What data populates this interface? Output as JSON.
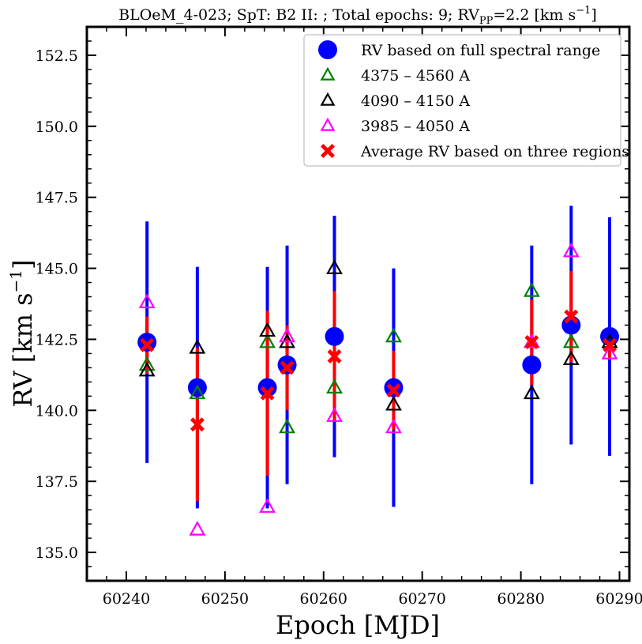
{
  "chart_data": {
    "type": "scatter",
    "title_parts": {
      "main": "BLOeM_4-023; SpT: B2 II: ; Total epochs: 9; RV",
      "sub": "PP",
      "rest": "=2.2 [km s",
      "sup": "−1",
      "close": "]"
    },
    "xlabel": "Epoch [MJD]",
    "ylabel_main": "RV [km s",
    "ylabel_sup": "−1",
    "ylabel_close": "]",
    "xlim": [
      60236,
      60291
    ],
    "ylim": [
      134.0,
      153.5
    ],
    "xticks": [
      "60240",
      "60250",
      "60260",
      "60270",
      "60280",
      "60290"
    ],
    "yticks": [
      "135.0",
      "137.5",
      "140.0",
      "142.5",
      "145.0",
      "147.5",
      "150.0",
      "152.5"
    ],
    "legend_position": "top-right",
    "legend": [
      {
        "label": "RV based on full spectral range",
        "marker": "circle",
        "color": "#0000ff"
      },
      {
        "label": "4375 – 4560 A",
        "marker": "triangle",
        "color": "#008000"
      },
      {
        "label": "4090 – 4150 A",
        "marker": "triangle",
        "color": "#000000"
      },
      {
        "label": "3985 – 4050 A",
        "marker": "triangle",
        "color": "#ff00ff"
      },
      {
        "label": "Average RV based on three regions",
        "marker": "x",
        "color": "#ff0000"
      }
    ],
    "series": [
      {
        "name": "RV based on full spectral range",
        "color": "#0000ff",
        "x": [
          60242.1,
          60247.2,
          60254.3,
          60256.3,
          60261.1,
          60267.1,
          60281.1,
          60285.1,
          60289.0
        ],
        "y": [
          142.4,
          140.8,
          140.8,
          141.6,
          142.6,
          140.8,
          141.6,
          143.0,
          142.6
        ],
        "err": [
          4.25,
          4.25,
          4.25,
          4.2,
          4.25,
          4.2,
          4.2,
          4.2,
          4.2
        ]
      },
      {
        "name": "4375 – 4560 A",
        "color": "#008000",
        "x": [
          60242.1,
          60247.2,
          60254.3,
          60256.3,
          60261.1,
          60267.1,
          60281.1,
          60285.1,
          60289.0
        ],
        "y": [
          141.6,
          140.6,
          142.4,
          139.4,
          140.8,
          142.6,
          144.2,
          142.4,
          142.4
        ]
      },
      {
        "name": "4090 – 4150 A",
        "color": "#000000",
        "x": [
          60242.1,
          60247.2,
          60254.3,
          60256.3,
          60261.1,
          60267.1,
          60281.1,
          60285.1,
          60289.0
        ],
        "y": [
          141.4,
          142.2,
          142.8,
          142.4,
          145.0,
          140.2,
          140.6,
          141.8,
          142.4
        ]
      },
      {
        "name": "3985 – 4050 A",
        "color": "#ff00ff",
        "x": [
          60242.1,
          60247.2,
          60254.3,
          60256.3,
          60261.1,
          60267.1,
          60281.1,
          60285.1,
          60289.0
        ],
        "y": [
          143.8,
          135.8,
          136.6,
          142.6,
          139.8,
          139.4,
          142.4,
          145.6,
          142.0
        ]
      },
      {
        "name": "Average RV based on three regions",
        "color": "#ff0000",
        "x": [
          60242.1,
          60247.2,
          60254.3,
          60256.3,
          60261.1,
          60267.1,
          60281.1,
          60285.1,
          60289.0
        ],
        "y": [
          142.3,
          139.5,
          140.6,
          141.5,
          141.9,
          140.7,
          142.4,
          143.3,
          142.3
        ],
        "err": [
          1.0,
          2.7,
          2.9,
          1.5,
          2.3,
          1.4,
          1.5,
          1.6,
          0.5
        ]
      }
    ]
  }
}
